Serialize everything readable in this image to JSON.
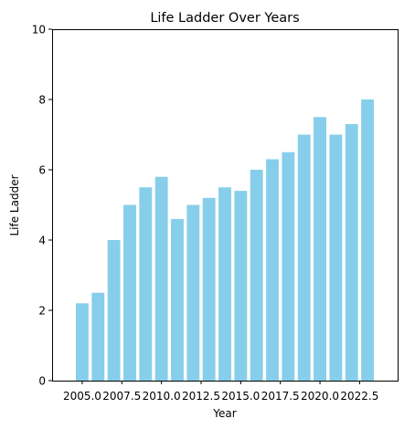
{
  "chart_data": {
    "type": "bar",
    "title": "Life Ladder Over Years",
    "xlabel": "Year",
    "ylabel": "Life Ladder",
    "x": [
      2005,
      2006,
      2007,
      2008,
      2009,
      2010,
      2011,
      2012,
      2013,
      2014,
      2015,
      2016,
      2017,
      2018,
      2019,
      2020,
      2021,
      2022,
      2023
    ],
    "values": [
      2.2,
      2.5,
      4.0,
      5.0,
      5.5,
      5.8,
      4.6,
      5.0,
      5.2,
      5.5,
      5.4,
      6.0,
      6.3,
      6.5,
      7.0,
      7.5,
      7.0,
      7.3,
      8.0
    ],
    "xlim": [
      2003.1,
      2024.9
    ],
    "ylim": [
      0,
      10
    ],
    "xticks": [
      2005.0,
      2007.5,
      2010.0,
      2012.5,
      2015.0,
      2017.5,
      2020.0,
      2022.5
    ],
    "xtick_labels": [
      "2005.0",
      "2007.5",
      "2010.0",
      "2012.5",
      "2015.0",
      "2017.5",
      "2020.0",
      "2022.5"
    ],
    "yticks": [
      0,
      2,
      4,
      6,
      8,
      10
    ],
    "ytick_labels": [
      "0",
      "2",
      "4",
      "6",
      "8",
      "10"
    ],
    "bar_color": "#87ceeb",
    "grid": false,
    "legend": "none"
  }
}
